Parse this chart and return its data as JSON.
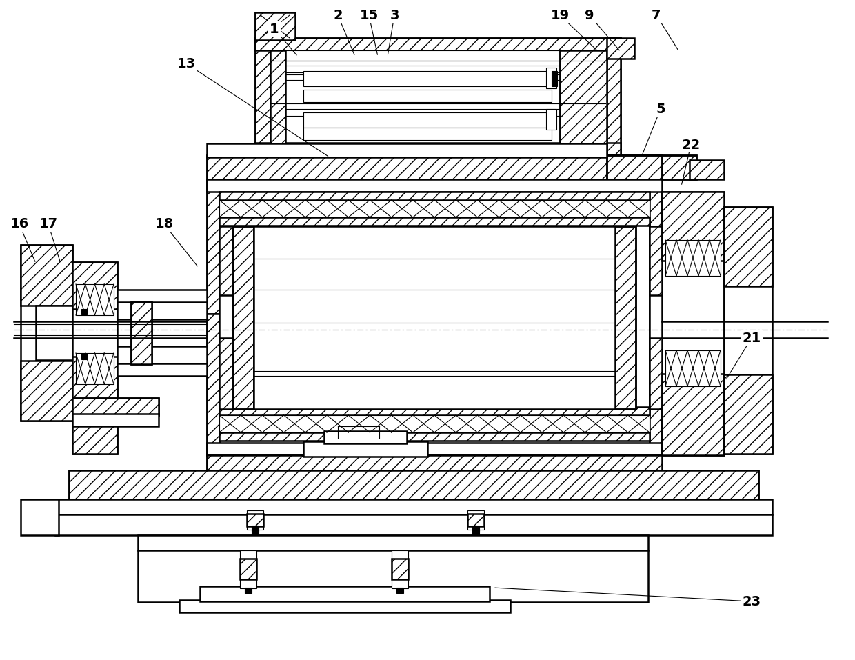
{
  "background_color": "#ffffff",
  "line_color": "#000000",
  "lw_main": 1.8,
  "lw_thin": 0.8,
  "lw_thick": 2.5,
  "annotations": [
    [
      "1",
      398,
      42,
      432,
      82
    ],
    [
      "2",
      490,
      22,
      515,
      82
    ],
    [
      "15",
      535,
      22,
      548,
      82
    ],
    [
      "3",
      572,
      22,
      562,
      82
    ],
    [
      "19",
      812,
      22,
      868,
      75
    ],
    [
      "9",
      855,
      22,
      900,
      75
    ],
    [
      "7",
      952,
      22,
      985,
      75
    ],
    [
      "13",
      270,
      92,
      478,
      228
    ],
    [
      "5",
      958,
      158,
      930,
      228
    ],
    [
      "22",
      1002,
      210,
      988,
      270
    ],
    [
      "16",
      28,
      325,
      52,
      382
    ],
    [
      "17",
      70,
      325,
      88,
      382
    ],
    [
      "18",
      238,
      325,
      288,
      388
    ],
    [
      "21",
      1090,
      490,
      1052,
      552
    ],
    [
      "23",
      1090,
      872,
      715,
      852
    ]
  ]
}
